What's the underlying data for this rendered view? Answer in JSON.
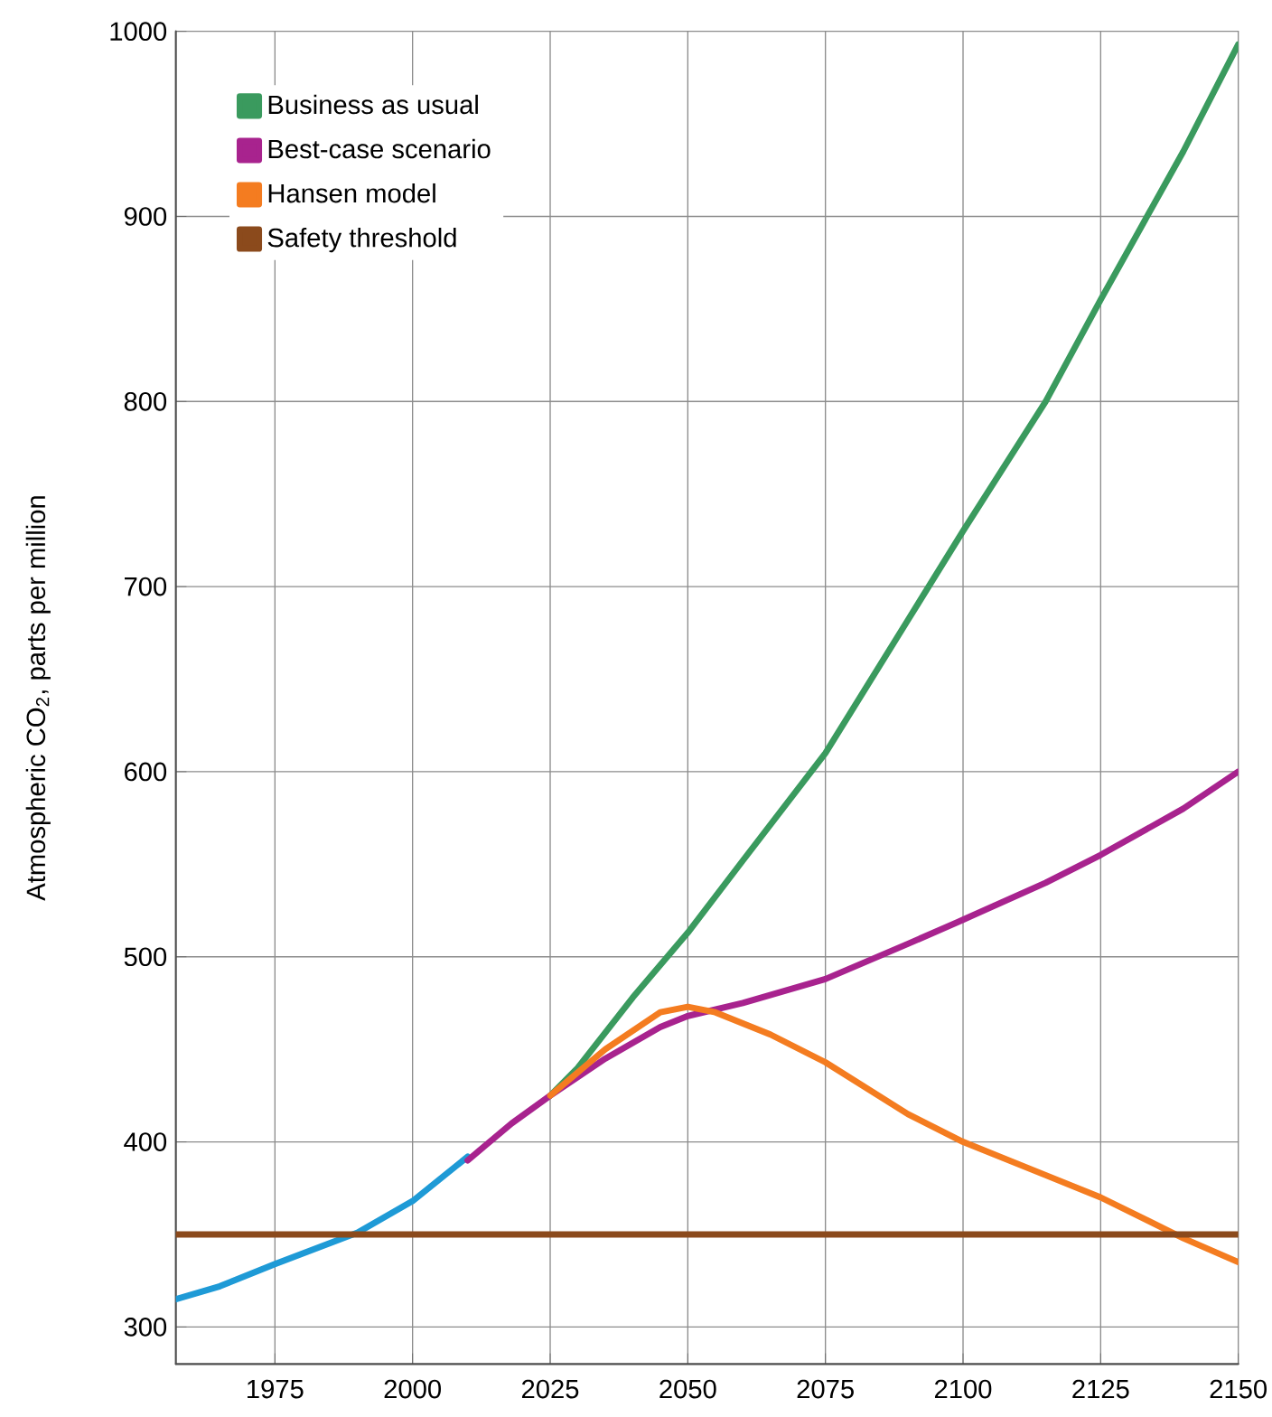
{
  "chart_data": {
    "type": "line",
    "ylabel": "Atmospheric CO$_{2}$, parts per million",
    "xlim": [
      1957,
      2150
    ],
    "ylim": [
      280,
      1000
    ],
    "xticks": [
      1975,
      2000,
      2025,
      2050,
      2075,
      2100,
      2125,
      2150
    ],
    "yticks": [
      300,
      400,
      500,
      600,
      700,
      800,
      900,
      1000
    ],
    "grid": true,
    "legend": "top left",
    "series": [
      {
        "color": "#1e9ad6",
        "x": [
          1957,
          1965,
          1975,
          1990,
          2000,
          2010
        ],
        "values": [
          315,
          322,
          334,
          351,
          368,
          392
        ]
      },
      {
        "name": "Business as usual",
        "color": "#3a9a5e",
        "x": [
          2025,
          2030,
          2040,
          2050,
          2060,
          2075,
          2090,
          2100,
          2115,
          2125,
          2140,
          2150
        ],
        "values": [
          425,
          440,
          478,
          513,
          552,
          610,
          682,
          730,
          800,
          855,
          935,
          993
        ]
      },
      {
        "name": "Best-case scenario",
        "color": "#a8238e",
        "x": [
          2010,
          2018,
          2025,
          2035,
          2045,
          2050,
          2060,
          2075,
          2090,
          2100,
          2115,
          2125,
          2140,
          2150
        ],
        "values": [
          390,
          410,
          425,
          445,
          462,
          468,
          475,
          488,
          507,
          520,
          540,
          555,
          580,
          600
        ]
      },
      {
        "name": "Hansen model",
        "color": "#f47c20",
        "x": [
          2025,
          2035,
          2045,
          2050,
          2055,
          2065,
          2075,
          2090,
          2100,
          2115,
          2125,
          2140,
          2150
        ],
        "values": [
          425,
          450,
          470,
          473,
          470,
          458,
          443,
          415,
          400,
          382,
          370,
          348,
          335
        ]
      },
      {
        "name": "Safety threshold",
        "color": "#8b4a1c",
        "x": [
          1957,
          2150
        ],
        "values": [
          350,
          350
        ]
      }
    ]
  }
}
